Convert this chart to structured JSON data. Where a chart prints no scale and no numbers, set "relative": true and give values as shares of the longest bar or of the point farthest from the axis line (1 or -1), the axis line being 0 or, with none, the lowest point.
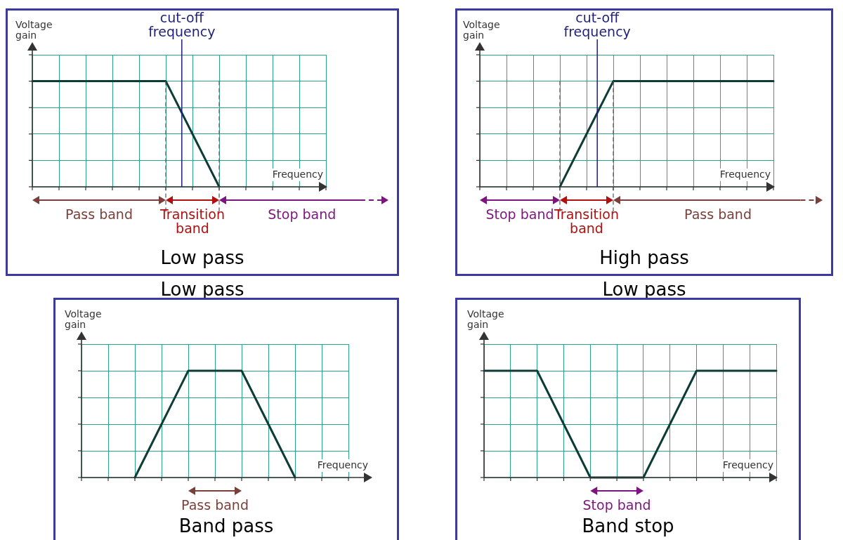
{
  "chart_data": [
    {
      "type": "line",
      "relative": true,
      "title": "Low pass",
      "xlabel": "Frequency",
      "ylabel": "Voltage gain",
      "categories": [
        null,
        null,
        null,
        null,
        null,
        null,
        null,
        null,
        null,
        null,
        null,
        null
      ],
      "values": [
        1,
        1,
        1,
        1,
        1,
        1,
        0.5,
        0,
        null,
        null,
        null,
        null
      ],
      "color": "#0d3b36",
      "tick_labels": false,
      "grid": true,
      "annotations": [
        "cut-off frequency",
        "Pass band",
        "Transition band",
        "Stop band",
        "Low pass"
      ]
    },
    {
      "type": "line",
      "relative": true,
      "title": "High pass",
      "xlabel": "Frequency",
      "ylabel": "Voltage gain",
      "categories": [
        null,
        null,
        null,
        null,
        null,
        null,
        null,
        null,
        null,
        null,
        null,
        null
      ],
      "values": [
        null,
        null,
        null,
        0,
        0.5,
        1,
        1,
        1,
        1,
        1,
        1,
        1
      ],
      "color": "#0d3b36",
      "tick_labels": false,
      "grid": true,
      "annotations": [
        "cut-off frequency",
        "Stop band",
        "Transition band",
        "Pass band",
        "Low pass"
      ]
    },
    {
      "type": "line",
      "relative": true,
      "title": "Band pass",
      "xlabel": "Frequency",
      "ylabel": "Voltage gain",
      "categories": [
        null,
        null,
        null,
        null,
        null,
        null,
        null,
        null,
        null,
        null,
        null
      ],
      "values": [
        null,
        null,
        0,
        0.5,
        1,
        1,
        1,
        0.5,
        0,
        null,
        null
      ],
      "color": "#0d3b36",
      "tick_labels": false,
      "grid": true,
      "annotations": [
        "Pass band"
      ]
    },
    {
      "type": "line",
      "relative": true,
      "title": "Band stop",
      "xlabel": "Frequency",
      "ylabel": "Voltage gain",
      "categories": [
        null,
        null,
        null,
        null,
        null,
        null,
        null,
        null,
        null,
        null,
        null,
        null
      ],
      "values": [
        1,
        1,
        1,
        0.5,
        0,
        0,
        0,
        0.5,
        1,
        1,
        1,
        1
      ],
      "color": "#0d3b36",
      "tick_labels": false,
      "grid": true,
      "annotations": [
        "Stop band"
      ]
    }
  ]
}
